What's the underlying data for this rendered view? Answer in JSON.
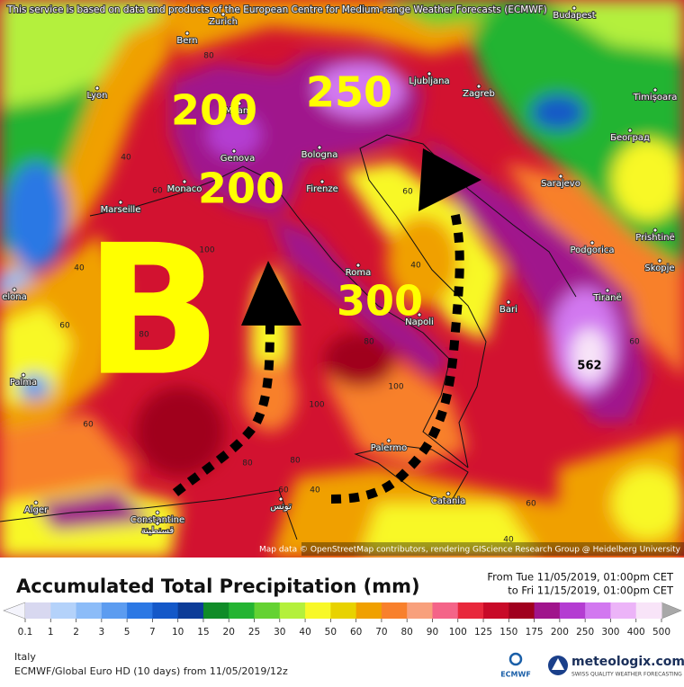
{
  "notice": "This service is based on data and products of the European Centre for Medium-range Weather Forecasts (ECMWF)",
  "attribution": "Map data © OpenStreetMap contributors, rendering GIScience Research Group @ Heidelberg University",
  "cities": [
    "Zurich",
    "Bern",
    "Lyon",
    "Milano",
    "Genova",
    "Monaco",
    "Marseille",
    "Bologna",
    "Firenze",
    "Roma",
    "Napoli",
    "Bari",
    "Palermo",
    "Catania",
    "Ljubljana",
    "Zagreb",
    "Budapest",
    "Timișoara",
    "Београд",
    "Sarajevo",
    "Podgorica",
    "Prishtinë",
    "Skopje",
    "Tiranë",
    "elona",
    "Palma",
    "Alger",
    "Constantine",
    "قسنطينة",
    "تونس"
  ],
  "annotations": {
    "pressure": "B",
    "totals": [
      "200",
      "250",
      "200",
      "300"
    ],
    "maximum": "562"
  },
  "contour_labels": [
    40,
    60,
    80,
    100,
    40,
    60,
    80,
    60,
    40,
    60,
    100,
    80,
    60,
    40,
    60,
    80,
    100,
    60,
    40,
    80
  ],
  "legend": {
    "title": "Accumulated Total Precipitation (mm)",
    "period_from": "From Tue 11/05/2019, 01:00pm CET",
    "period_to": "to Fri 11/15/2019, 01:00pm CET",
    "ticks": [
      0.1,
      1,
      2,
      3,
      5,
      7,
      10,
      15,
      20,
      25,
      30,
      40,
      50,
      60,
      70,
      80,
      90,
      100,
      125,
      150,
      175,
      200,
      250,
      300,
      400,
      500
    ],
    "colors": [
      "#d8d8f0",
      "#b4d2fa",
      "#8cbcf8",
      "#5c9cf0",
      "#2c78e4",
      "#1458c8",
      "#0c3c98",
      "#108c28",
      "#24b432",
      "#64d232",
      "#b4f03c",
      "#f8f828",
      "#e8d200",
      "#f0a000",
      "#f8802c",
      "#f8a07c",
      "#f46488",
      "#e8283c",
      "#c80a28",
      "#a0001e",
      "#a0148c",
      "#b43cd2",
      "#d278f0",
      "#ecb4f8",
      "#f8e4f8"
    ],
    "under_color": "#f4f4fc",
    "over_color": "#a8a8a8"
  },
  "footer": {
    "region": "Italy",
    "model": "ECMWF/Global Euro HD (10 days)  from  11/05/2019/12z",
    "ecmwf": "ECMWF",
    "brand": "meteologix.com",
    "tagline": "SWISS QUALITY WEATHER FORECASTING"
  }
}
